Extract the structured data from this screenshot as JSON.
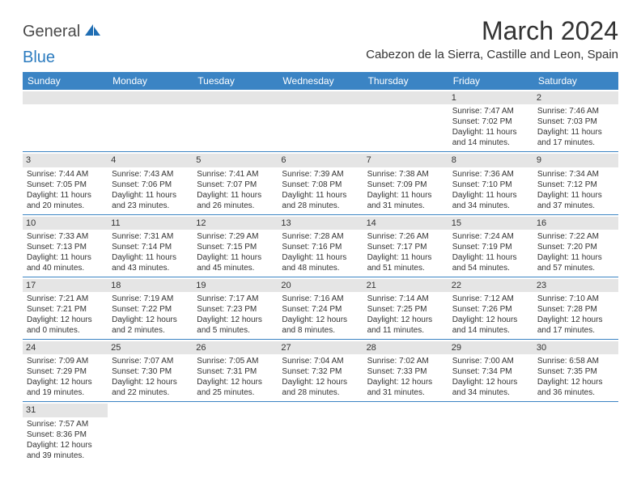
{
  "logo": {
    "general": "General",
    "blue": "Blue"
  },
  "title": "March 2024",
  "location": "Cabezon de la Sierra, Castille and Leon, Spain",
  "colors": {
    "header_bg": "#3b84c4",
    "header_text": "#ffffff",
    "daynum_bg": "#e5e5e5",
    "border": "#3b84c4",
    "text": "#333333",
    "logo_gray": "#4a4a4a",
    "logo_blue": "#2b7bbf"
  },
  "weekdays": [
    "Sunday",
    "Monday",
    "Tuesday",
    "Wednesday",
    "Thursday",
    "Friday",
    "Saturday"
  ],
  "weeks": [
    [
      {
        "n": "",
        "empty": true
      },
      {
        "n": "",
        "empty": true
      },
      {
        "n": "",
        "empty": true
      },
      {
        "n": "",
        "empty": true
      },
      {
        "n": "",
        "empty": true
      },
      {
        "n": "1",
        "l1": "Sunrise: 7:47 AM",
        "l2": "Sunset: 7:02 PM",
        "l3": "Daylight: 11 hours",
        "l4": "and 14 minutes."
      },
      {
        "n": "2",
        "l1": "Sunrise: 7:46 AM",
        "l2": "Sunset: 7:03 PM",
        "l3": "Daylight: 11 hours",
        "l4": "and 17 minutes."
      }
    ],
    [
      {
        "n": "3",
        "l1": "Sunrise: 7:44 AM",
        "l2": "Sunset: 7:05 PM",
        "l3": "Daylight: 11 hours",
        "l4": "and 20 minutes."
      },
      {
        "n": "4",
        "l1": "Sunrise: 7:43 AM",
        "l2": "Sunset: 7:06 PM",
        "l3": "Daylight: 11 hours",
        "l4": "and 23 minutes."
      },
      {
        "n": "5",
        "l1": "Sunrise: 7:41 AM",
        "l2": "Sunset: 7:07 PM",
        "l3": "Daylight: 11 hours",
        "l4": "and 26 minutes."
      },
      {
        "n": "6",
        "l1": "Sunrise: 7:39 AM",
        "l2": "Sunset: 7:08 PM",
        "l3": "Daylight: 11 hours",
        "l4": "and 28 minutes."
      },
      {
        "n": "7",
        "l1": "Sunrise: 7:38 AM",
        "l2": "Sunset: 7:09 PM",
        "l3": "Daylight: 11 hours",
        "l4": "and 31 minutes."
      },
      {
        "n": "8",
        "l1": "Sunrise: 7:36 AM",
        "l2": "Sunset: 7:10 PM",
        "l3": "Daylight: 11 hours",
        "l4": "and 34 minutes."
      },
      {
        "n": "9",
        "l1": "Sunrise: 7:34 AM",
        "l2": "Sunset: 7:12 PM",
        "l3": "Daylight: 11 hours",
        "l4": "and 37 minutes."
      }
    ],
    [
      {
        "n": "10",
        "l1": "Sunrise: 7:33 AM",
        "l2": "Sunset: 7:13 PM",
        "l3": "Daylight: 11 hours",
        "l4": "and 40 minutes."
      },
      {
        "n": "11",
        "l1": "Sunrise: 7:31 AM",
        "l2": "Sunset: 7:14 PM",
        "l3": "Daylight: 11 hours",
        "l4": "and 43 minutes."
      },
      {
        "n": "12",
        "l1": "Sunrise: 7:29 AM",
        "l2": "Sunset: 7:15 PM",
        "l3": "Daylight: 11 hours",
        "l4": "and 45 minutes."
      },
      {
        "n": "13",
        "l1": "Sunrise: 7:28 AM",
        "l2": "Sunset: 7:16 PM",
        "l3": "Daylight: 11 hours",
        "l4": "and 48 minutes."
      },
      {
        "n": "14",
        "l1": "Sunrise: 7:26 AM",
        "l2": "Sunset: 7:17 PM",
        "l3": "Daylight: 11 hours",
        "l4": "and 51 minutes."
      },
      {
        "n": "15",
        "l1": "Sunrise: 7:24 AM",
        "l2": "Sunset: 7:19 PM",
        "l3": "Daylight: 11 hours",
        "l4": "and 54 minutes."
      },
      {
        "n": "16",
        "l1": "Sunrise: 7:22 AM",
        "l2": "Sunset: 7:20 PM",
        "l3": "Daylight: 11 hours",
        "l4": "and 57 minutes."
      }
    ],
    [
      {
        "n": "17",
        "l1": "Sunrise: 7:21 AM",
        "l2": "Sunset: 7:21 PM",
        "l3": "Daylight: 12 hours",
        "l4": "and 0 minutes."
      },
      {
        "n": "18",
        "l1": "Sunrise: 7:19 AM",
        "l2": "Sunset: 7:22 PM",
        "l3": "Daylight: 12 hours",
        "l4": "and 2 minutes."
      },
      {
        "n": "19",
        "l1": "Sunrise: 7:17 AM",
        "l2": "Sunset: 7:23 PM",
        "l3": "Daylight: 12 hours",
        "l4": "and 5 minutes."
      },
      {
        "n": "20",
        "l1": "Sunrise: 7:16 AM",
        "l2": "Sunset: 7:24 PM",
        "l3": "Daylight: 12 hours",
        "l4": "and 8 minutes."
      },
      {
        "n": "21",
        "l1": "Sunrise: 7:14 AM",
        "l2": "Sunset: 7:25 PM",
        "l3": "Daylight: 12 hours",
        "l4": "and 11 minutes."
      },
      {
        "n": "22",
        "l1": "Sunrise: 7:12 AM",
        "l2": "Sunset: 7:26 PM",
        "l3": "Daylight: 12 hours",
        "l4": "and 14 minutes."
      },
      {
        "n": "23",
        "l1": "Sunrise: 7:10 AM",
        "l2": "Sunset: 7:28 PM",
        "l3": "Daylight: 12 hours",
        "l4": "and 17 minutes."
      }
    ],
    [
      {
        "n": "24",
        "l1": "Sunrise: 7:09 AM",
        "l2": "Sunset: 7:29 PM",
        "l3": "Daylight: 12 hours",
        "l4": "and 19 minutes."
      },
      {
        "n": "25",
        "l1": "Sunrise: 7:07 AM",
        "l2": "Sunset: 7:30 PM",
        "l3": "Daylight: 12 hours",
        "l4": "and 22 minutes."
      },
      {
        "n": "26",
        "l1": "Sunrise: 7:05 AM",
        "l2": "Sunset: 7:31 PM",
        "l3": "Daylight: 12 hours",
        "l4": "and 25 minutes."
      },
      {
        "n": "27",
        "l1": "Sunrise: 7:04 AM",
        "l2": "Sunset: 7:32 PM",
        "l3": "Daylight: 12 hours",
        "l4": "and 28 minutes."
      },
      {
        "n": "28",
        "l1": "Sunrise: 7:02 AM",
        "l2": "Sunset: 7:33 PM",
        "l3": "Daylight: 12 hours",
        "l4": "and 31 minutes."
      },
      {
        "n": "29",
        "l1": "Sunrise: 7:00 AM",
        "l2": "Sunset: 7:34 PM",
        "l3": "Daylight: 12 hours",
        "l4": "and 34 minutes."
      },
      {
        "n": "30",
        "l1": "Sunrise: 6:58 AM",
        "l2": "Sunset: 7:35 PM",
        "l3": "Daylight: 12 hours",
        "l4": "and 36 minutes."
      }
    ],
    [
      {
        "n": "31",
        "l1": "Sunrise: 7:57 AM",
        "l2": "Sunset: 8:36 PM",
        "l3": "Daylight: 12 hours",
        "l4": "and 39 minutes."
      },
      {
        "n": "",
        "empty": true
      },
      {
        "n": "",
        "empty": true
      },
      {
        "n": "",
        "empty": true
      },
      {
        "n": "",
        "empty": true
      },
      {
        "n": "",
        "empty": true
      },
      {
        "n": "",
        "empty": true
      }
    ]
  ]
}
